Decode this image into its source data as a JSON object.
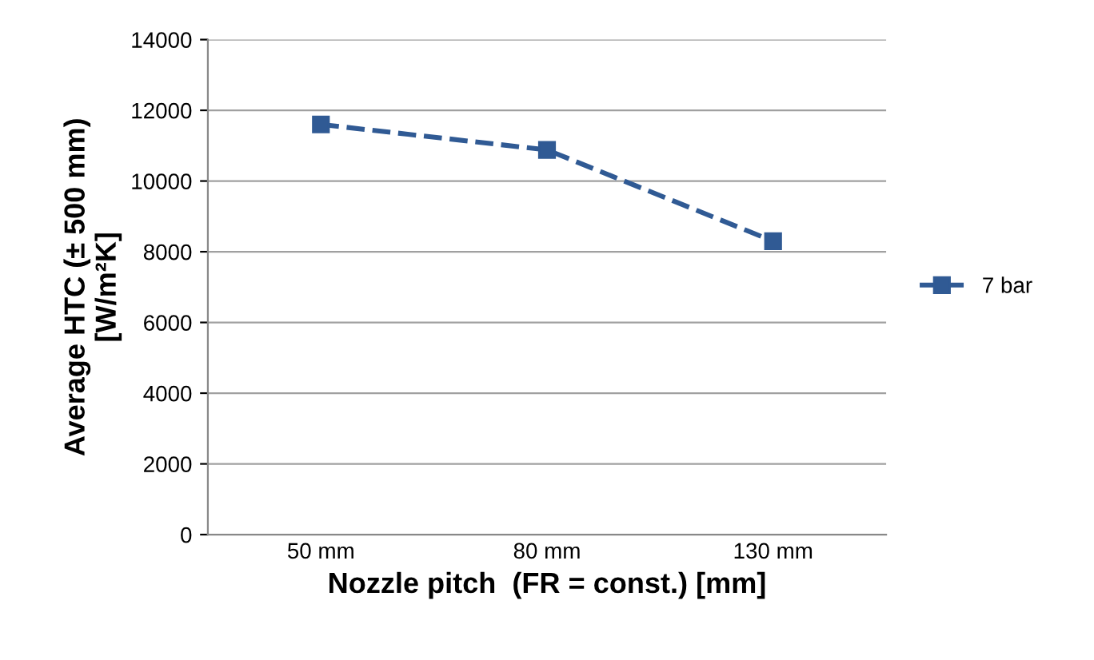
{
  "chart_data": {
    "type": "line",
    "xlabel": "Nozzle pitch  (FR = const.) [mm]",
    "ylabel": "Average HTC (± 500 mm)\n[W/m²K]",
    "categories": [
      "50 mm",
      "80 mm",
      "130 mm"
    ],
    "series": [
      {
        "name": "7 bar",
        "color": "#305a94",
        "values": [
          11600,
          10880,
          8300
        ]
      }
    ],
    "ylim": [
      0,
      14000
    ],
    "yticks": [
      0,
      2000,
      4000,
      6000,
      8000,
      10000,
      12000,
      14000
    ],
    "grid": "y",
    "legend": "right",
    "marker": "square",
    "line_style": "dashed"
  }
}
